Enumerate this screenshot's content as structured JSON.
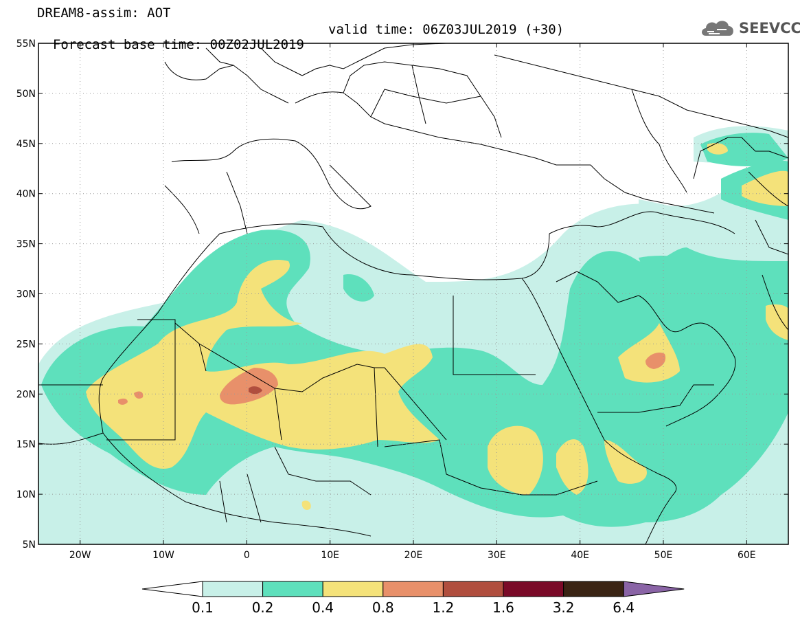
{
  "title": {
    "product": "DREAM8-assim: AOT",
    "base_time": "Forecast base time: 00Z02JUL2019",
    "valid_time": "valid time: 06Z03JUL2019 (+30)"
  },
  "logo": {
    "text": "SEEVCCC",
    "icon": "cloud-icon"
  },
  "map": {
    "lon_range": [
      -25,
      65
    ],
    "lat_range": [
      5,
      55
    ],
    "lon_ticks": [
      {
        "value": -20,
        "label": "20W"
      },
      {
        "value": -10,
        "label": "10W"
      },
      {
        "value": 0,
        "label": "0"
      },
      {
        "value": 10,
        "label": "10E"
      },
      {
        "value": 20,
        "label": "20E"
      },
      {
        "value": 30,
        "label": "30E"
      },
      {
        "value": 40,
        "label": "40E"
      },
      {
        "value": 50,
        "label": "50E"
      },
      {
        "value": 60,
        "label": "60E"
      }
    ],
    "lat_ticks": [
      {
        "value": 5,
        "label": "5N"
      },
      {
        "value": 10,
        "label": "10N"
      },
      {
        "value": 15,
        "label": "15N"
      },
      {
        "value": 20,
        "label": "20N"
      },
      {
        "value": 25,
        "label": "25N"
      },
      {
        "value": 30,
        "label": "30N"
      },
      {
        "value": 35,
        "label": "35N"
      },
      {
        "value": 40,
        "label": "40N"
      },
      {
        "value": 45,
        "label": "45N"
      },
      {
        "value": 50,
        "label": "50N"
      },
      {
        "value": 55,
        "label": "55N"
      }
    ],
    "grid": true
  },
  "colorbar": {
    "levels": [
      "0.1",
      "0.2",
      "0.4",
      "0.8",
      "1.2",
      "1.6",
      "3.2",
      "6.4"
    ],
    "colors": [
      "#ffffff",
      "#c8f0e8",
      "#5ee0bc",
      "#f4e27a",
      "#e8906a",
      "#b04e3e",
      "#7a0a28",
      "#3a2414",
      "#8a64a6"
    ]
  }
}
